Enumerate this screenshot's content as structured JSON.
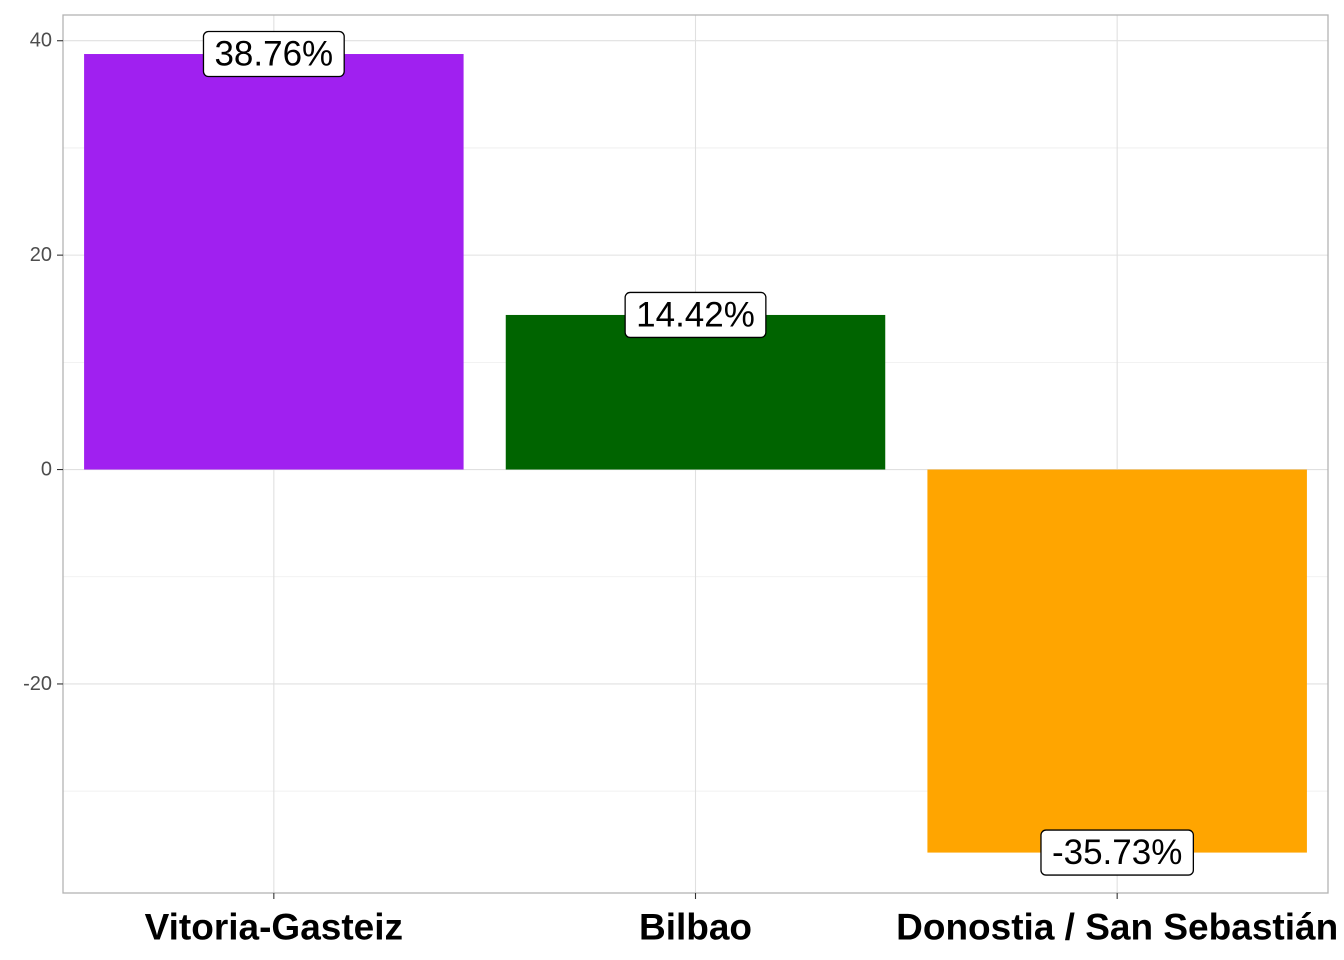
{
  "chart_data": {
    "type": "bar",
    "categories": [
      "Vitoria-Gasteiz",
      "Bilbao",
      "Donostia / San Sebastián"
    ],
    "values": [
      38.76,
      14.42,
      -35.73
    ],
    "data_labels": [
      "38.76%",
      "14.42%",
      "-35.73%"
    ],
    "colors": [
      "#a020f0",
      "#006400",
      "#ffa500"
    ],
    "title": "",
    "xlabel": "",
    "ylabel": "",
    "ylim": [
      -39.5,
      42.4
    ],
    "yticks": [
      -20,
      0,
      20,
      40
    ],
    "ytick_labels": [
      "-20",
      "0",
      "20",
      "40"
    ],
    "grid": true,
    "legend": "none"
  }
}
